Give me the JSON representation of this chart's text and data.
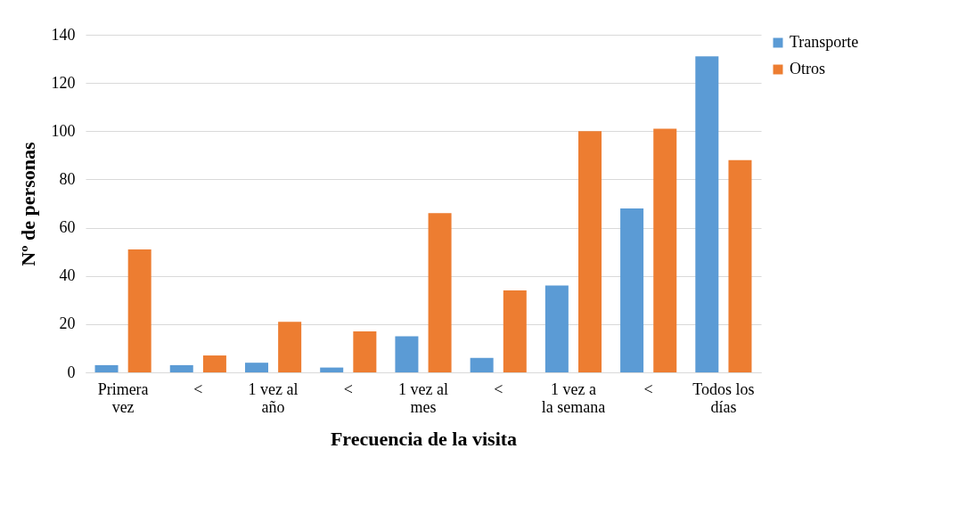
{
  "chart_data": {
    "type": "bar",
    "xlabel": "Frecuencia de la visita",
    "ylabel": "Nº de personas",
    "categories": [
      "Primera vez",
      "<",
      "1 vez al año",
      "<",
      "1 vez al mes",
      "<",
      "1 vez a la semana",
      "<",
      "Todos los días"
    ],
    "series": [
      {
        "name": "Transporte",
        "color": "#5b9bd5",
        "values": [
          3,
          3,
          4,
          2,
          15,
          6,
          36,
          68,
          131
        ]
      },
      {
        "name": "Otros",
        "color": "#ed7d31",
        "values": [
          51,
          7,
          21,
          17,
          66,
          34,
          100,
          101,
          88
        ]
      }
    ],
    "ylim": [
      0,
      140
    ],
    "yticks": [
      0,
      20,
      40,
      60,
      80,
      100,
      120,
      140
    ],
    "grid": "y",
    "legend": "right"
  }
}
